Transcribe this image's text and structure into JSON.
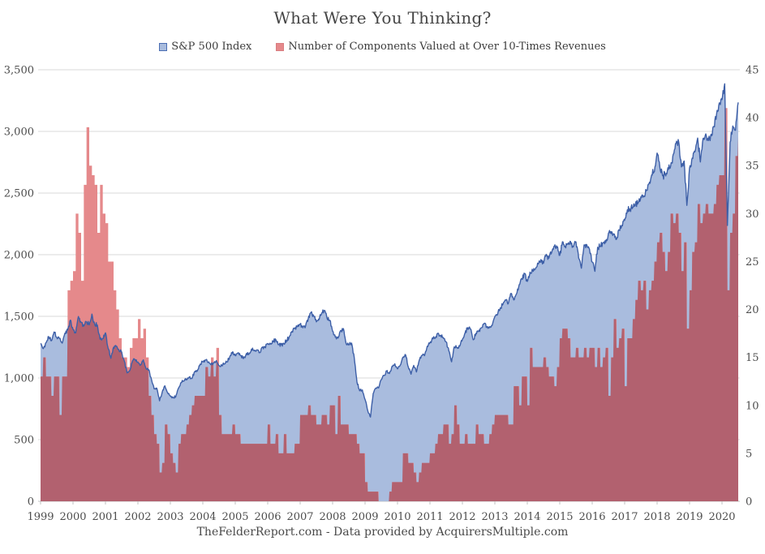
{
  "title": "What Were You Thinking?",
  "legend": {
    "items": [
      {
        "label": "S&P 500 Index",
        "swatch_fill": "#a9bcde",
        "swatch_border": "#4a6db3"
      },
      {
        "label": "Number of Components Valued at Over 10-Times Revenues",
        "swatch_fill": "#e5898b",
        "swatch_border": "#d97d80"
      }
    ]
  },
  "footer": "TheFelderReport.com - Data provided by AcquirersMultiple.com",
  "chart_data": {
    "type": "area",
    "title": "What Were You Thinking?",
    "frequency": "monthly",
    "x_start": "1999-01",
    "x_end": "2020-07",
    "x_tick_labels": [
      "1999",
      "2000",
      "2001",
      "2002",
      "2003",
      "2004",
      "2005",
      "2006",
      "2007",
      "2008",
      "2009",
      "2010",
      "2011",
      "2012",
      "2013",
      "2014",
      "2015",
      "2016",
      "2017",
      "2018",
      "2019",
      "2020"
    ],
    "left_axis": {
      "title": "S&P 500 Index",
      "min": 0,
      "max": 3500,
      "tick_values": [
        0,
        500,
        1000,
        1500,
        2000,
        2500,
        3000,
        3500
      ],
      "tick_labels": [
        "0",
        "500",
        "1,000",
        "1,500",
        "2,000",
        "2,500",
        "3,000",
        "3,500"
      ]
    },
    "right_axis": {
      "title": "Number of Components Valued at Over 10-Times Revenues",
      "min": 0,
      "max": 45,
      "tick_values": [
        0,
        5,
        10,
        15,
        20,
        25,
        30,
        35,
        40,
        45
      ],
      "tick_labels": [
        "0",
        "5",
        "10",
        "15",
        "20",
        "25",
        "30",
        "35",
        "40",
        "45"
      ]
    },
    "grid": "horizontal",
    "legend_position": "top",
    "series": [
      {
        "name": "S&P 500 Index",
        "axis": "left",
        "style": "area-with-line",
        "fill": "#a9bcde",
        "line": "#3d5fa7",
        "values": [
          1280,
          1238,
          1286,
          1335,
          1302,
          1373,
          1329,
          1320,
          1283,
          1363,
          1389,
          1469,
          1394,
          1366,
          1499,
          1452,
          1421,
          1455,
          1431,
          1518,
          1437,
          1429,
          1315,
          1320,
          1366,
          1240,
          1160,
          1249,
          1256,
          1224,
          1211,
          1134,
          1041,
          1060,
          1139,
          1148,
          1130,
          1107,
          1147,
          1077,
          1067,
          990,
          912,
          916,
          815,
          886,
          936,
          880,
          856,
          841,
          848,
          917,
          964,
          975,
          990,
          1008,
          996,
          1051,
          1058,
          1112,
          1131,
          1145,
          1126,
          1107,
          1121,
          1141,
          1102,
          1104,
          1115,
          1130,
          1174,
          1212,
          1181,
          1204,
          1181,
          1157,
          1192,
          1191,
          1234,
          1220,
          1229,
          1207,
          1249,
          1248,
          1280,
          1281,
          1295,
          1311,
          1270,
          1270,
          1277,
          1304,
          1336,
          1378,
          1401,
          1418,
          1438,
          1407,
          1421,
          1482,
          1531,
          1503,
          1455,
          1474,
          1527,
          1549,
          1481,
          1468,
          1379,
          1331,
          1323,
          1386,
          1400,
          1280,
          1267,
          1283,
          1165,
          969,
          896,
          903,
          826,
          735,
          683,
          873,
          919,
          919,
          987,
          1021,
          1057,
          1036,
          1096,
          1115,
          1074,
          1104,
          1169,
          1187,
          1089,
          1031,
          1102,
          1049,
          1141,
          1183,
          1181,
          1258,
          1286,
          1327,
          1326,
          1364,
          1345,
          1321,
          1292,
          1219,
          1131,
          1253,
          1247,
          1258,
          1312,
          1366,
          1408,
          1398,
          1310,
          1362,
          1379,
          1407,
          1441,
          1412,
          1416,
          1426,
          1498,
          1515,
          1569,
          1598,
          1631,
          1606,
          1686,
          1633,
          1682,
          1757,
          1806,
          1848,
          1783,
          1859,
          1872,
          1884,
          1924,
          1960,
          1931,
          2003,
          1972,
          2018,
          2068,
          2059,
          1995,
          2105,
          2068,
          2086,
          2107,
          2063,
          2104,
          1972,
          1890,
          2079,
          2080,
          2044,
          1940,
          1865,
          2060,
          2065,
          2097,
          2099,
          2174,
          2171,
          2168,
          2126,
          2199,
          2239,
          2279,
          2364,
          2363,
          2384,
          2412,
          2423,
          2470,
          2472,
          2519,
          2575,
          2648,
          2674,
          2824,
          2714,
          2641,
          2648,
          2705,
          2718,
          2816,
          2902,
          2914,
          2712,
          2760,
          2400,
          2704,
          2784,
          2834,
          2946,
          2752,
          2942,
          2980,
          2926,
          2977,
          3038,
          3141,
          3231,
          3258,
          3386,
          2237,
          2912,
          3044,
          3009,
          3235
        ]
      },
      {
        "name": "Number of Components Valued at Over 10-Times Revenues",
        "axis": "right",
        "style": "step-area",
        "fill": "#e5898b",
        "overlap_fill": "#b2616f",
        "values": [
          13,
          15,
          13,
          13,
          11,
          13,
          13,
          9,
          13,
          13,
          22,
          23,
          24,
          30,
          28,
          23,
          33,
          39,
          35,
          34,
          33,
          28,
          33,
          30,
          29,
          25,
          25,
          22,
          20,
          17,
          15,
          15,
          14,
          16,
          17,
          17,
          19,
          17,
          18,
          15,
          11,
          9,
          7,
          6,
          3,
          4,
          8,
          7,
          5,
          4,
          3,
          6,
          7,
          7,
          8,
          9,
          10,
          11,
          11,
          11,
          11,
          14,
          13,
          15,
          13,
          16,
          9,
          7,
          7,
          7,
          7,
          8,
          7,
          7,
          6,
          6,
          6,
          6,
          6,
          6,
          6,
          6,
          6,
          6,
          8,
          6,
          6,
          7,
          5,
          5,
          7,
          5,
          5,
          5,
          6,
          6,
          9,
          9,
          9,
          10,
          9,
          9,
          8,
          8,
          9,
          9,
          8,
          10,
          10,
          7,
          11,
          8,
          8,
          8,
          7,
          7,
          7,
          6,
          5,
          5,
          2,
          1,
          1,
          1,
          1,
          0,
          0,
          0,
          0,
          1,
          2,
          2,
          2,
          2,
          5,
          5,
          4,
          4,
          3,
          2,
          3,
          4,
          4,
          4,
          5,
          5,
          6,
          7,
          7,
          8,
          8,
          6,
          7,
          10,
          8,
          6,
          6,
          7,
          6,
          6,
          6,
          8,
          7,
          7,
          6,
          6,
          7,
          8,
          9,
          9,
          9,
          9,
          9,
          8,
          8,
          12,
          12,
          10,
          13,
          13,
          10,
          16,
          14,
          14,
          14,
          14,
          15,
          14,
          13,
          13,
          12,
          14,
          17,
          18,
          18,
          17,
          15,
          15,
          16,
          15,
          15,
          16,
          15,
          16,
          16,
          14,
          16,
          14,
          15,
          16,
          11,
          15,
          19,
          16,
          17,
          18,
          12,
          17,
          17,
          19,
          21,
          23,
          22,
          23,
          20,
          22,
          23,
          25,
          27,
          28,
          26,
          24,
          26,
          30,
          29,
          30,
          28,
          24,
          27,
          18,
          22,
          26,
          27,
          31,
          29,
          30,
          31,
          30,
          30,
          31,
          33,
          34,
          34,
          41,
          22,
          28,
          30,
          36,
          38
        ]
      }
    ],
    "colors": {
      "gridline": "#d9d9d9",
      "baseline": "#c2c2c2",
      "axis_text": "#4d4d4d"
    }
  }
}
